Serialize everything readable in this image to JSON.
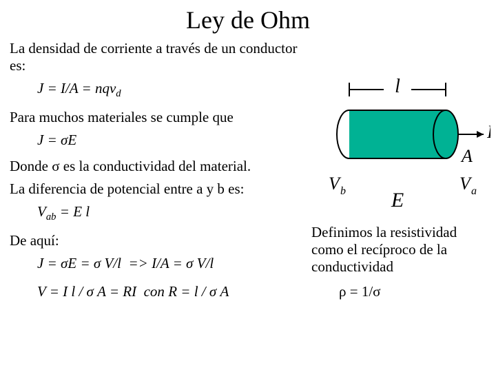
{
  "title": "Ley de Ohm",
  "p1": "La densidad de corriente a través de un conductor es:",
  "eq1_html": "<i>J</i> = <i>I</i>/<i>A</i> = <i>nqv<sub>d</sub></i>",
  "p2": "Para muchos materiales se cumple que",
  "eq2_html": "<i>J</i> = σ<i>E</i>",
  "p3": "Donde σ es la conductividad del material.",
  "p4": "La diferencia de potencial entre a y b es:",
  "eq3_html": "<i>V<sub>ab</sub></i> = <i>E l</i>",
  "p5": "De aquí:",
  "eq4_html": "<i>J</i> = σ<i>E</i> = σ <i>V</i>/<i>l</i> &nbsp;=&gt; <i>I</i>/<i>A</i> = σ <i>V</i>/<i>l</i>",
  "eq5_html": "<i>V</i> = <i>I l</i> / σ <i>A</i> = <i>RI</i> &nbsp;con <i>R</i> = <i>l</i> / σ <i>A</i>",
  "def_text": "Definimos la resistividad como el recíproco de la conductividad",
  "rho_eq_html": "ρ = 1/σ",
  "diagram": {
    "l_label": "l",
    "I_label": "I",
    "A_label": "A",
    "Vb_label_html": "<i>V<sub>b</sub></i>",
    "Va_label_html": "<i>V<sub>a</sub></i>",
    "E_label": "E",
    "cylinder_fill": "#00b294",
    "cylinder_stroke": "#000000",
    "l_color": "#000000"
  }
}
